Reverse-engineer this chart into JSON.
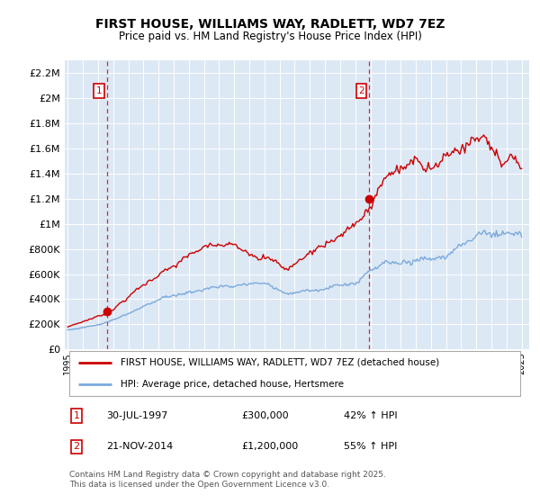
{
  "title": "FIRST HOUSE, WILLIAMS WAY, RADLETT, WD7 7EZ",
  "subtitle": "Price paid vs. HM Land Registry's House Price Index (HPI)",
  "ytick_values": [
    0,
    200000,
    400000,
    600000,
    800000,
    1000000,
    1200000,
    1400000,
    1600000,
    1800000,
    2000000,
    2200000
  ],
  "ylim": [
    0,
    2300000
  ],
  "xlim_start": 1994.8,
  "xlim_end": 2025.5,
  "purchase1_year": 1997.58,
  "purchase1_price": 300000,
  "purchase2_year": 2014.9,
  "purchase2_price": 1200000,
  "red_color": "#cc0000",
  "blue_color": "#7aaadd",
  "grid_color": "#ffffff",
  "bg_color": "#dde8f5",
  "legend_entry1": "FIRST HOUSE, WILLIAMS WAY, RADLETT, WD7 7EZ (detached house)",
  "legend_entry2": "HPI: Average price, detached house, Hertsmere",
  "annotation1_label": "1",
  "annotation2_label": "2",
  "annotation1_date": "30-JUL-1997",
  "annotation1_price": "£300,000",
  "annotation1_hpi": "42% ↑ HPI",
  "annotation2_date": "21-NOV-2014",
  "annotation2_price": "£1,200,000",
  "annotation2_hpi": "55% ↑ HPI",
  "footer": "Contains HM Land Registry data © Crown copyright and database right 2025.\nThis data is licensed under the Open Government Licence v3.0."
}
